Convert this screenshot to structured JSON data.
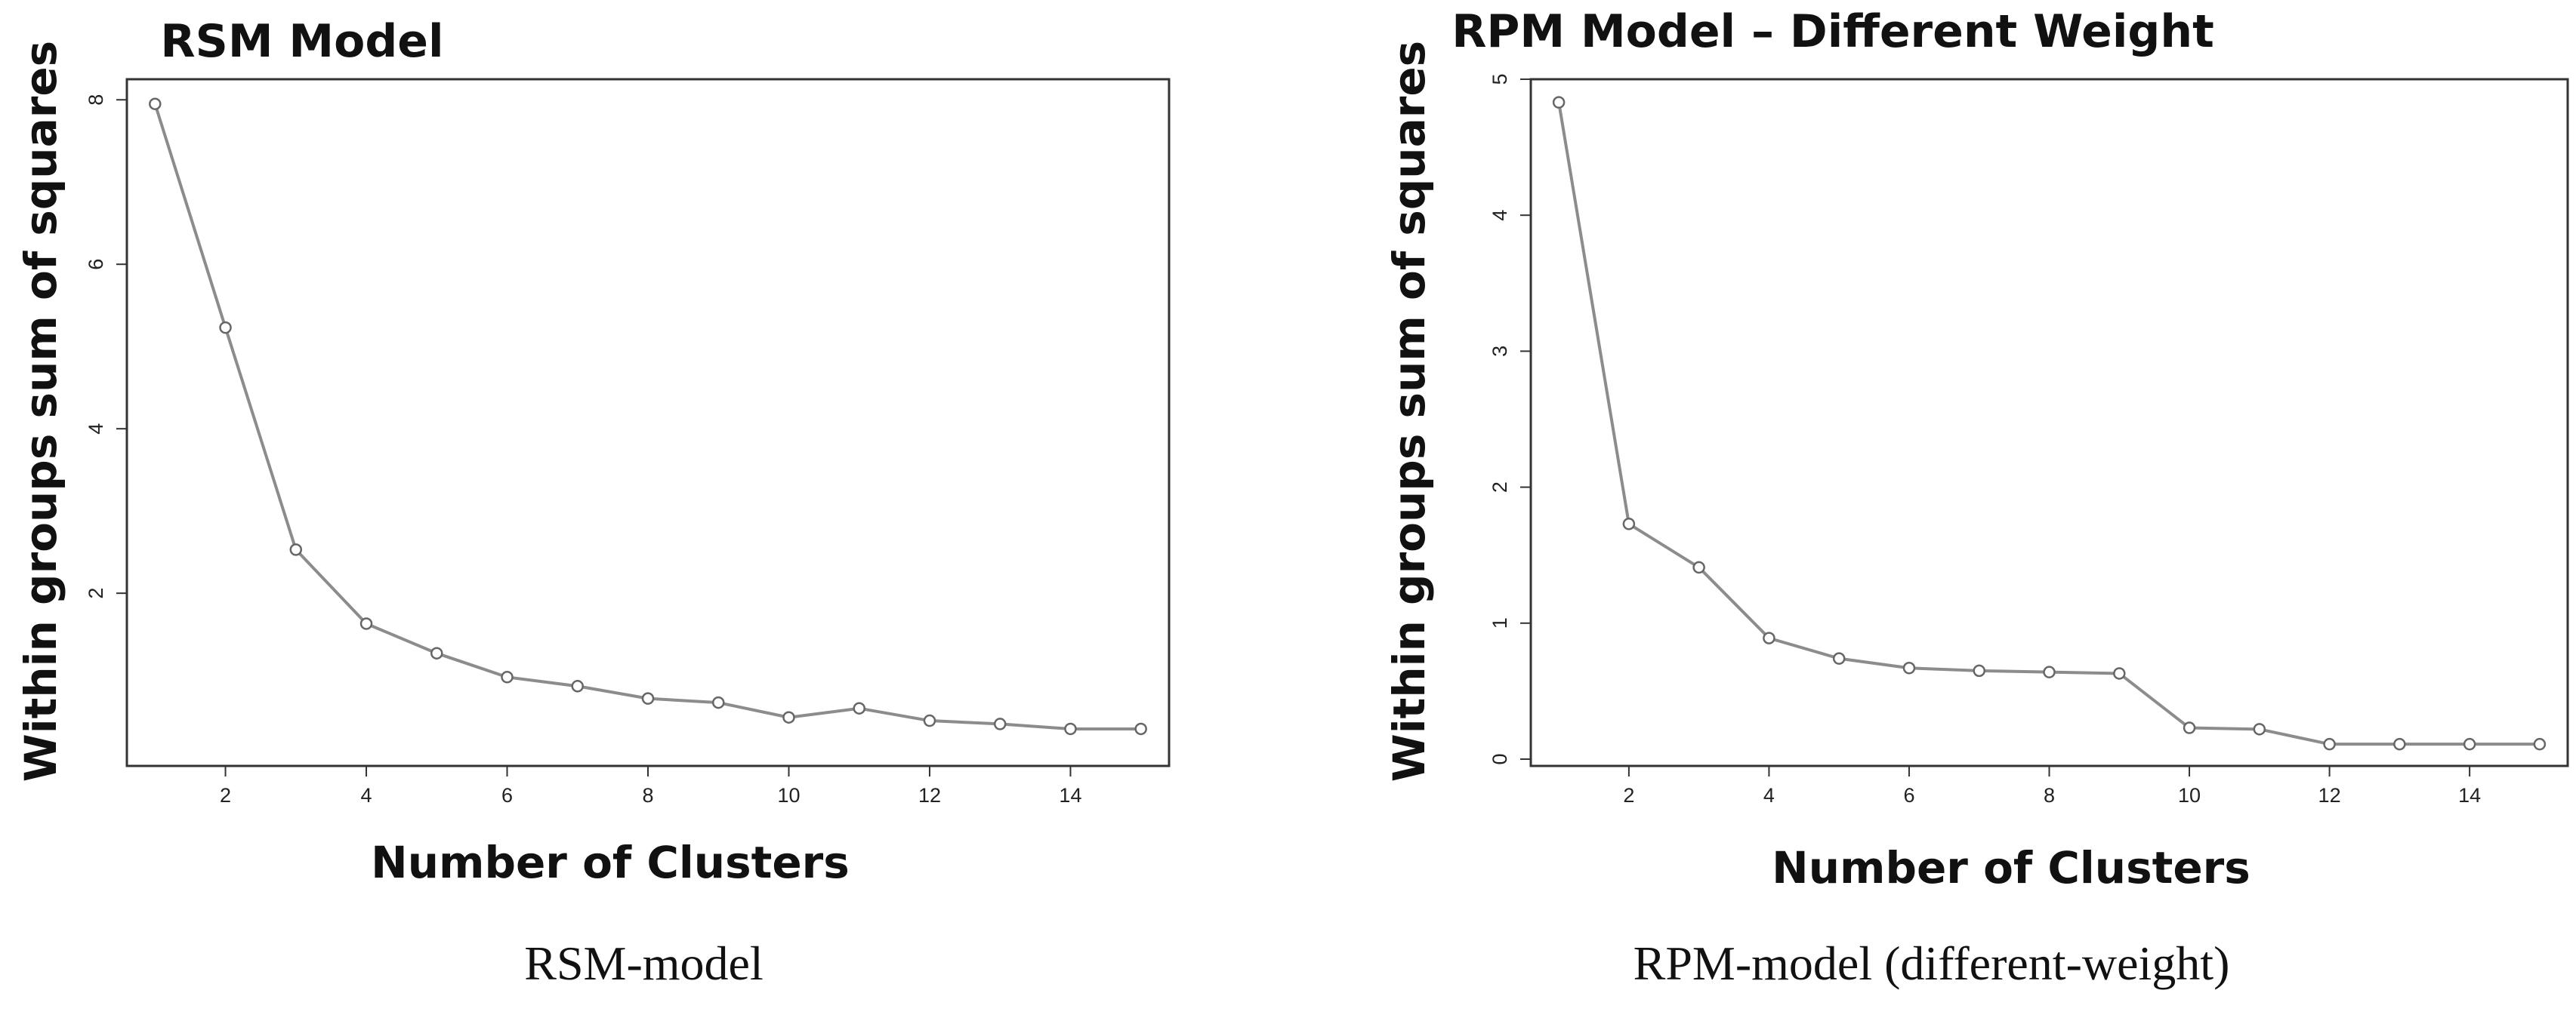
{
  "chart_data": [
    {
      "type": "line",
      "title": "RSM Model",
      "xlabel": "Number of Clusters",
      "ylabel": "Within groups sum of squares",
      "caption": "RSM-model",
      "x": [
        1,
        2,
        3,
        4,
        5,
        6,
        7,
        8,
        9,
        10,
        11,
        12,
        13,
        14,
        15
      ],
      "values": [
        7.95,
        5.23,
        2.53,
        1.63,
        1.27,
        0.98,
        0.87,
        0.72,
        0.67,
        0.49,
        0.6,
        0.45,
        0.41,
        0.35,
        0.35
      ],
      "xlim": [
        0.6,
        15.4
      ],
      "ylim": [
        -0.1,
        8.25
      ],
      "xticks": [
        "2",
        "4",
        "6",
        "8",
        "10",
        "12",
        "14"
      ],
      "yticks": [
        "2",
        "4",
        "6",
        "8"
      ],
      "line_color": "#8c8c8c",
      "marker_color": "#666666",
      "grid": false
    },
    {
      "type": "line",
      "title": "RPM Model – Different Weight",
      "xlabel": "Number of Clusters",
      "ylabel": "Within groups sum of squares",
      "caption": "RPM-model (different-weight)",
      "x": [
        1,
        2,
        3,
        4,
        5,
        6,
        7,
        8,
        9,
        10,
        11,
        12,
        13,
        14,
        15
      ],
      "values": [
        4.83,
        1.73,
        1.41,
        0.89,
        0.74,
        0.67,
        0.65,
        0.64,
        0.63,
        0.23,
        0.22,
        0.11,
        0.11,
        0.11,
        0.11
      ],
      "xlim": [
        0.6,
        15.4
      ],
      "ylim": [
        -0.05,
        5.0
      ],
      "xticks": [
        "2",
        "4",
        "6",
        "8",
        "10",
        "12",
        "14"
      ],
      "yticks": [
        "0",
        "1",
        "2",
        "3",
        "4",
        "5"
      ],
      "line_color": "#8c8c8c",
      "marker_color": "#666666",
      "grid": false
    }
  ]
}
